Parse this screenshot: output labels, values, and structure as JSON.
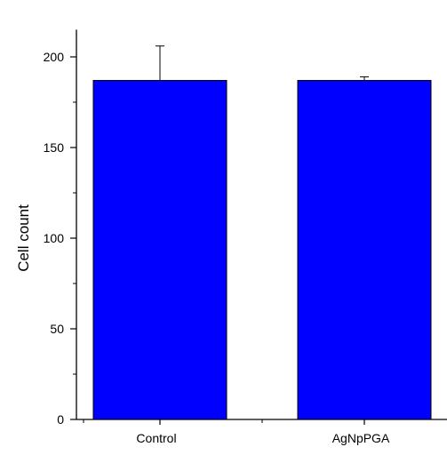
{
  "chart_data": {
    "type": "bar",
    "categories": [
      "Control",
      "AgNpPGA"
    ],
    "values": [
      187,
      187
    ],
    "errors": [
      19,
      2
    ],
    "xlabel": "",
    "ylabel": "Cell count",
    "ylim": [
      0,
      215
    ],
    "yticks": [
      "0",
      "50",
      "100",
      "150",
      "200"
    ],
    "bar_color": "#0000ff",
    "grid": false
  }
}
